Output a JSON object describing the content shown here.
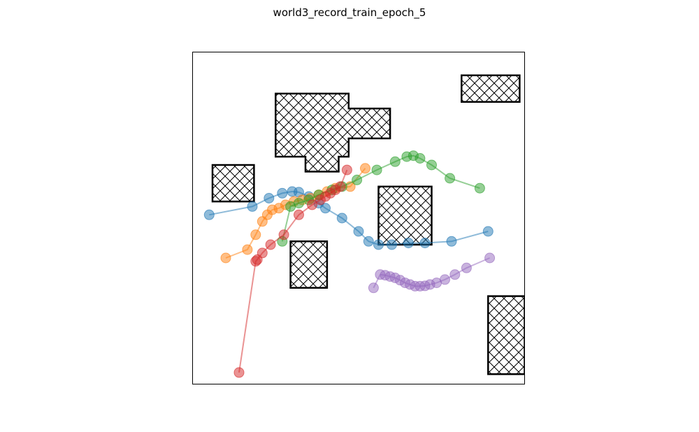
{
  "chart_data": {
    "type": "scatter",
    "title": "world3_record_train_epoch_5",
    "xlabel": "",
    "ylabel": "",
    "axes_ticks": "none",
    "grid": false,
    "legend": "none",
    "xlim": [
      0,
      10
    ],
    "ylim": [
      0,
      10
    ],
    "obstacles": [
      {
        "points": [
          [
            2.5,
            8.75
          ],
          [
            4.7,
            8.75
          ],
          [
            4.7,
            8.3
          ],
          [
            5.95,
            8.3
          ],
          [
            5.95,
            7.4
          ],
          [
            4.7,
            7.4
          ],
          [
            4.7,
            6.85
          ],
          [
            4.4,
            6.85
          ],
          [
            4.4,
            6.4
          ],
          [
            3.4,
            6.4
          ],
          [
            3.4,
            6.85
          ],
          [
            2.5,
            6.85
          ]
        ]
      },
      {
        "points": [
          [
            8.1,
            9.3
          ],
          [
            9.85,
            9.3
          ],
          [
            9.85,
            8.5
          ],
          [
            8.1,
            8.5
          ]
        ]
      },
      {
        "points": [
          [
            0.6,
            6.6
          ],
          [
            1.85,
            6.6
          ],
          [
            1.85,
            5.5
          ],
          [
            0.6,
            5.5
          ]
        ]
      },
      {
        "points": [
          [
            5.6,
            5.95
          ],
          [
            7.2,
            5.95
          ],
          [
            7.2,
            4.2
          ],
          [
            5.6,
            4.2
          ]
        ]
      },
      {
        "points": [
          [
            2.95,
            4.3
          ],
          [
            4.05,
            4.3
          ],
          [
            4.05,
            2.9
          ],
          [
            2.95,
            2.9
          ]
        ]
      },
      {
        "points": [
          [
            8.9,
            2.65
          ],
          [
            10.0,
            2.65
          ],
          [
            10.0,
            0.3
          ],
          [
            8.9,
            0.3
          ]
        ]
      }
    ],
    "series": [
      {
        "color": "#1f77b4",
        "points": [
          [
            0.5,
            5.1
          ],
          [
            1.8,
            5.35
          ],
          [
            2.3,
            5.6
          ],
          [
            2.7,
            5.75
          ],
          [
            3.0,
            5.8
          ],
          [
            3.2,
            5.78
          ],
          [
            3.5,
            5.65
          ],
          [
            3.8,
            5.45
          ],
          [
            4.0,
            5.3
          ],
          [
            4.5,
            5.0
          ],
          [
            5.0,
            4.6
          ],
          [
            5.3,
            4.3
          ],
          [
            5.6,
            4.2
          ],
          [
            6.0,
            4.2
          ],
          [
            6.5,
            4.25
          ],
          [
            7.0,
            4.25
          ],
          [
            7.8,
            4.3
          ],
          [
            8.9,
            4.6
          ]
        ]
      },
      {
        "color": "#ff7f0e",
        "points": [
          [
            1.0,
            3.8
          ],
          [
            1.65,
            4.05
          ],
          [
            1.9,
            4.5
          ],
          [
            2.1,
            4.9
          ],
          [
            2.25,
            5.1
          ],
          [
            2.4,
            5.25
          ],
          [
            2.6,
            5.3
          ],
          [
            2.8,
            5.4
          ],
          [
            3.05,
            5.5
          ],
          [
            3.3,
            5.55
          ],
          [
            3.55,
            5.6
          ],
          [
            3.8,
            5.7
          ],
          [
            4.05,
            5.8
          ],
          [
            4.3,
            5.9
          ],
          [
            4.75,
            5.95
          ],
          [
            5.2,
            6.5
          ]
        ]
      },
      {
        "color": "#2ca02c",
        "points": [
          [
            2.7,
            4.3
          ],
          [
            2.95,
            5.35
          ],
          [
            3.2,
            5.45
          ],
          [
            3.5,
            5.55
          ],
          [
            3.8,
            5.7
          ],
          [
            4.2,
            5.85
          ],
          [
            4.5,
            5.95
          ],
          [
            4.95,
            6.15
          ],
          [
            5.55,
            6.45
          ],
          [
            6.1,
            6.7
          ],
          [
            6.45,
            6.85
          ],
          [
            6.65,
            6.88
          ],
          [
            6.85,
            6.8
          ],
          [
            7.2,
            6.6
          ],
          [
            7.75,
            6.2
          ],
          [
            8.65,
            5.9
          ]
        ]
      },
      {
        "color": "#d62728",
        "points": [
          [
            1.4,
            0.35
          ],
          [
            1.9,
            3.7
          ],
          [
            1.95,
            3.75
          ],
          [
            2.1,
            3.95
          ],
          [
            2.35,
            4.2
          ],
          [
            2.75,
            4.5
          ],
          [
            3.2,
            5.1
          ],
          [
            3.6,
            5.4
          ],
          [
            3.85,
            5.55
          ],
          [
            4.0,
            5.65
          ],
          [
            4.15,
            5.75
          ],
          [
            4.3,
            5.85
          ],
          [
            4.45,
            5.95
          ],
          [
            4.65,
            6.45
          ]
        ]
      },
      {
        "color": "#9467bd",
        "points": [
          [
            5.45,
            2.9
          ],
          [
            5.65,
            3.3
          ],
          [
            5.8,
            3.28
          ],
          [
            5.95,
            3.24
          ],
          [
            6.1,
            3.2
          ],
          [
            6.25,
            3.13
          ],
          [
            6.4,
            3.05
          ],
          [
            6.55,
            3.0
          ],
          [
            6.7,
            2.95
          ],
          [
            6.85,
            2.95
          ],
          [
            7.0,
            2.96
          ],
          [
            7.15,
            3.0
          ],
          [
            7.35,
            3.05
          ],
          [
            7.6,
            3.15
          ],
          [
            7.9,
            3.3
          ],
          [
            8.25,
            3.5
          ],
          [
            8.95,
            3.8
          ]
        ]
      }
    ]
  }
}
